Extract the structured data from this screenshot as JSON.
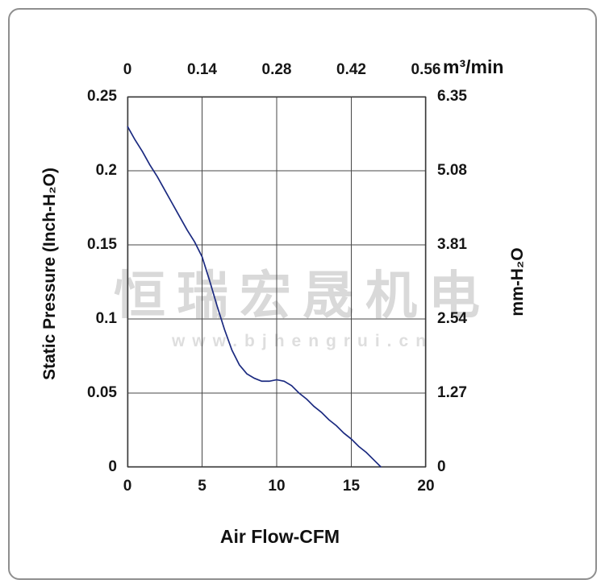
{
  "watermark": {
    "text": "恒瑞宏晟机电",
    "url": "www.bjhengrui.cn"
  },
  "chart_data": {
    "type": "line",
    "grid": true,
    "legend": "none",
    "axes": {
      "bottom": {
        "label": "Air Flow-CFM",
        "range": [
          0,
          20
        ],
        "ticks": [
          "0",
          "5",
          "10",
          "15",
          "20"
        ]
      },
      "top": {
        "label": "m³/min",
        "range": [
          0,
          0.56
        ],
        "ticks": [
          "0",
          "0.14",
          "0.28",
          "0.42",
          "0.56"
        ]
      },
      "left": {
        "label": "Static Pressure (Inch-H₂O)",
        "range": [
          0,
          0.25
        ],
        "ticks": [
          "0",
          "0.05",
          "0.1",
          "0.15",
          "0.2",
          "0.25"
        ]
      },
      "right": {
        "label": "mm-H₂O",
        "range": [
          0,
          6.35
        ],
        "ticks": [
          "0",
          "1.27",
          "2.54",
          "3.81",
          "5.08",
          "6.35"
        ]
      }
    },
    "series": [
      {
        "name": "static-pressure-vs-airflow",
        "color": "#1b2a80",
        "points": [
          [
            0,
            0.23
          ],
          [
            0.5,
            0.221
          ],
          [
            1,
            0.213
          ],
          [
            1.5,
            0.204
          ],
          [
            2,
            0.196
          ],
          [
            2.5,
            0.187
          ],
          [
            3,
            0.178
          ],
          [
            3.5,
            0.169
          ],
          [
            4,
            0.16
          ],
          [
            4.5,
            0.152
          ],
          [
            5,
            0.142
          ],
          [
            5.5,
            0.126
          ],
          [
            6,
            0.109
          ],
          [
            6.5,
            0.093
          ],
          [
            7,
            0.079
          ],
          [
            7.5,
            0.069
          ],
          [
            8,
            0.063
          ],
          [
            8.5,
            0.06
          ],
          [
            9,
            0.058
          ],
          [
            9.5,
            0.058
          ],
          [
            10,
            0.059
          ],
          [
            10.5,
            0.058
          ],
          [
            11,
            0.055
          ],
          [
            11.5,
            0.05
          ],
          [
            12,
            0.046
          ],
          [
            12.5,
            0.041
          ],
          [
            13,
            0.037
          ],
          [
            13.5,
            0.032
          ],
          [
            14,
            0.028
          ],
          [
            14.5,
            0.023
          ],
          [
            15,
            0.019
          ],
          [
            15.5,
            0.014
          ],
          [
            16,
            0.01
          ],
          [
            16.5,
            0.005
          ],
          [
            17,
            0.0
          ]
        ]
      }
    ]
  }
}
